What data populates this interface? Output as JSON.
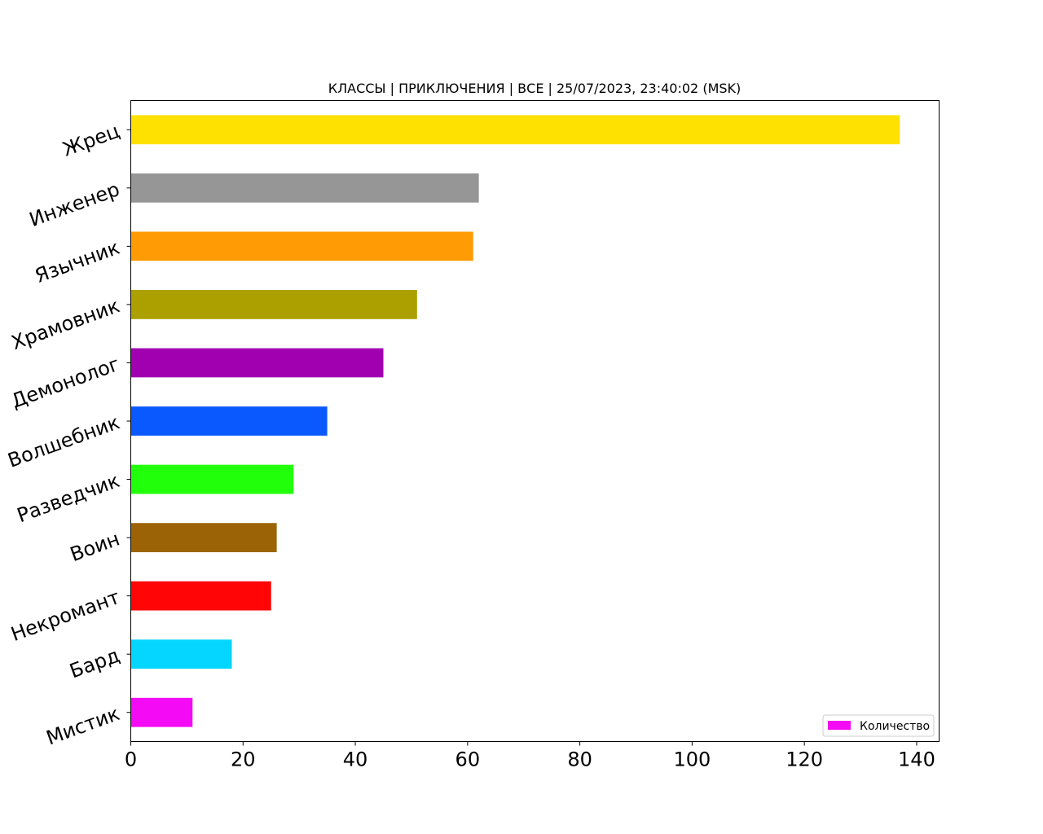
{
  "chart_data": {
    "type": "bar",
    "orientation": "horizontal",
    "title": "КЛАССЫ | ПРИКЛЮЧЕНИЯ | ВСЕ | 25/07/2023, 23:40:02 (MSK)",
    "xlabel": "",
    "ylabel": "",
    "xlim": [
      0,
      144
    ],
    "xticks": [
      0,
      20,
      40,
      60,
      80,
      100,
      120,
      140
    ],
    "categories": [
      "Жрец",
      "Инженер",
      "Язычник",
      "Храмовник",
      "Демонолог",
      "Волшебник",
      "Разведчик",
      "Воин",
      "Некромант",
      "Бард",
      "Мистик"
    ],
    "values": [
      137,
      62,
      61,
      51,
      45,
      35,
      29,
      26,
      25,
      18,
      11
    ],
    "colors": [
      "#ffe100",
      "#969696",
      "#ff9b05",
      "#aca000",
      "#a000b0",
      "#0a59ff",
      "#22ff0a",
      "#9c6306",
      "#ff0505",
      "#05d6ff",
      "#f50af5"
    ],
    "series": [
      {
        "name": "Количество"
      }
    ],
    "legend": {
      "label": "Количество",
      "color": "#f50af5",
      "placement": "lower-right"
    },
    "grid": false
  }
}
